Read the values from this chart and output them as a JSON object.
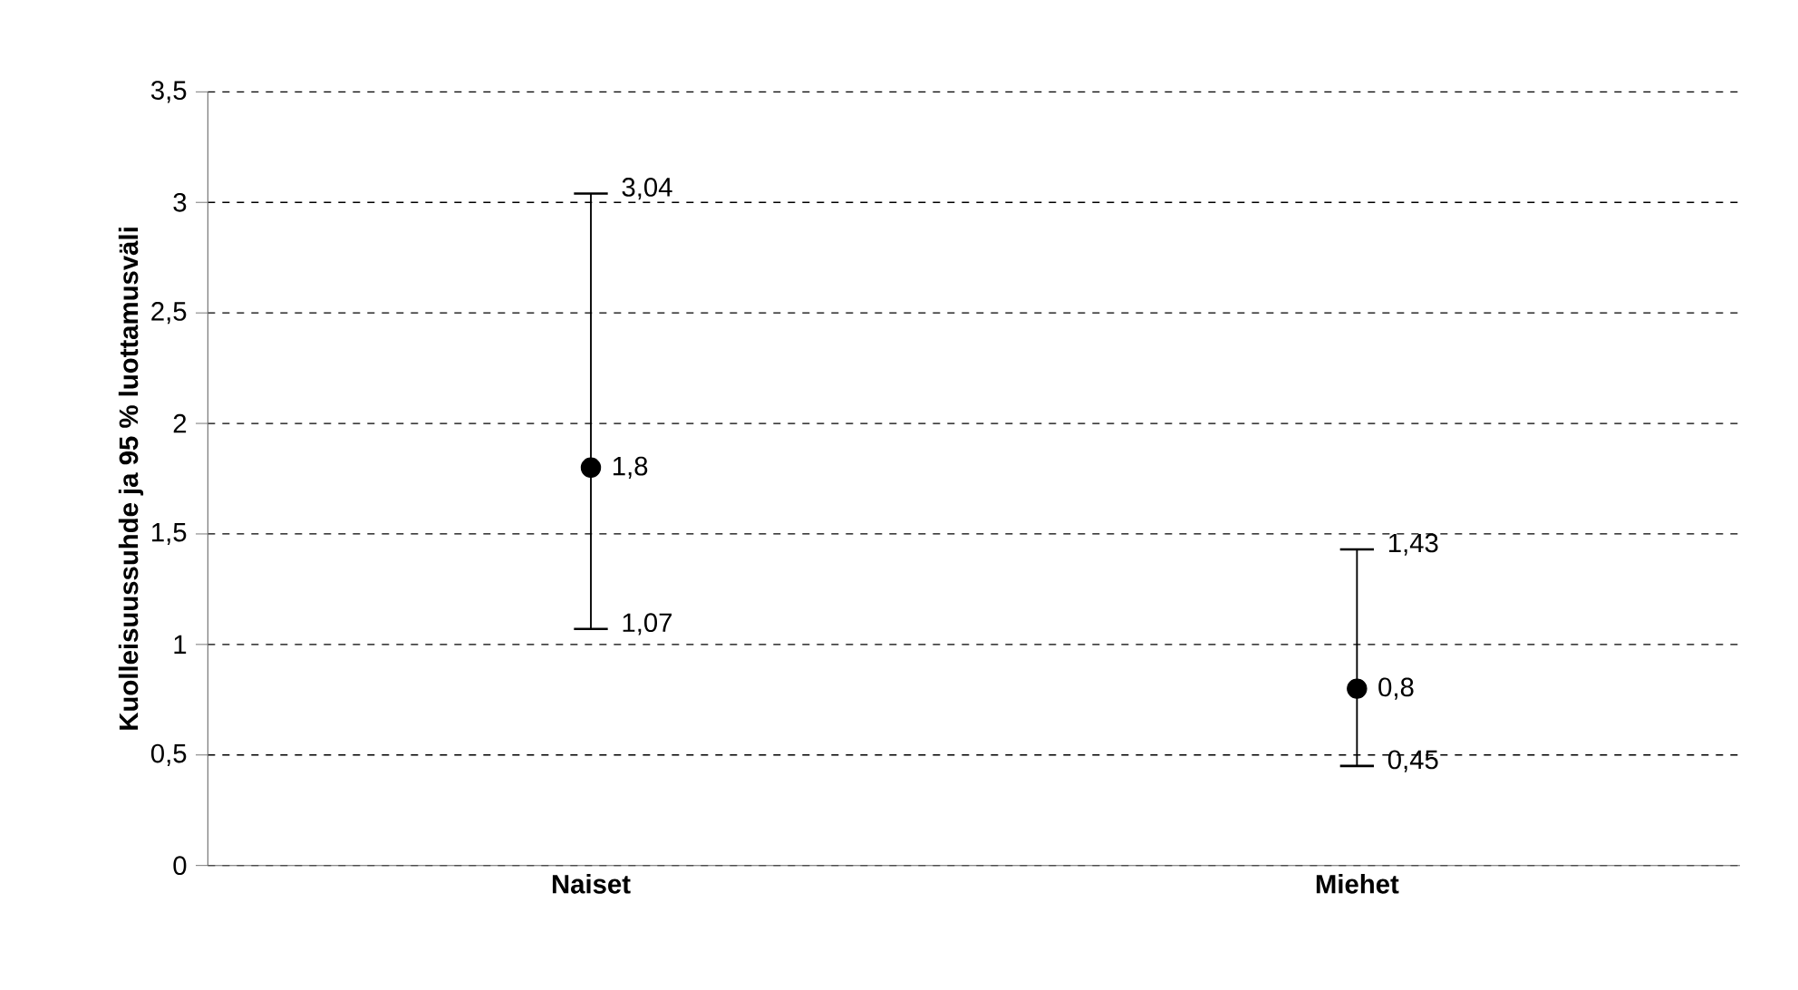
{
  "chart_data": {
    "type": "scatter",
    "ylabel": "Kuolleisuussuhde ja 95 % luottamusväli",
    "categories": [
      "Naiset",
      "Miehet"
    ],
    "values": [
      1.8,
      0.8
    ],
    "value_labels": [
      "1,8",
      "0,8"
    ],
    "errors": [
      [
        1.07,
        3.04
      ],
      [
        0.45,
        1.43
      ]
    ],
    "color": "#000000",
    "marker": "circle",
    "ylim": [
      0,
      3.5
    ],
    "yticks": [
      0,
      {
        "value": 0.5,
        "label": "0,5"
      },
      1,
      {
        "value": 1.5,
        "label": "1,5"
      },
      2,
      {
        "value": 2.5,
        "label": "2,5"
      },
      3,
      {
        "value": 3.5,
        "label": "3,5"
      }
    ],
    "grid": "y",
    "annotations": [
      {
        "text": "3,04",
        "x": "Naiset",
        "y": 3.04
      },
      {
        "text": "1,07",
        "x": "Naiset",
        "y": 1.07
      },
      {
        "text": "1,43",
        "x": "Miehet",
        "y": 1.43
      },
      {
        "text": "0,45",
        "x": "Miehet",
        "y": 0.45
      }
    ]
  }
}
